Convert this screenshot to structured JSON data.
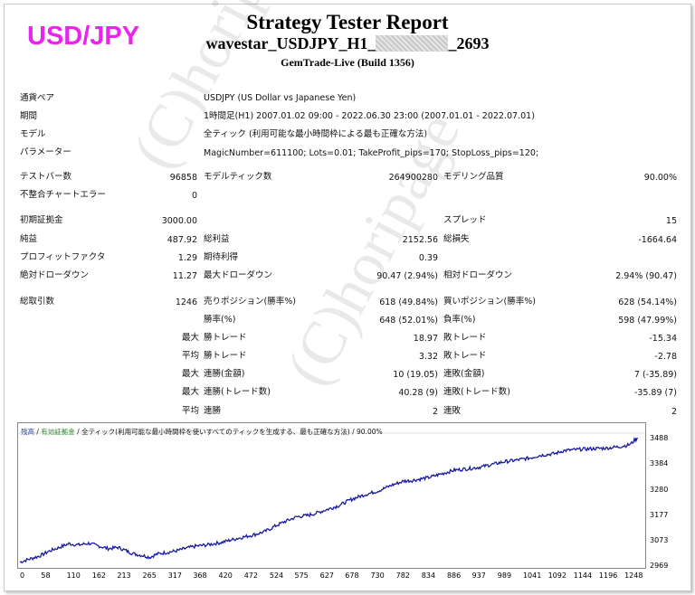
{
  "header": {
    "pair_label": "USD/JPY",
    "title": "Strategy Tester Report",
    "subtitle_prefix": "wavestar_USDJPY_H1_",
    "subtitle_suffix": "_2693",
    "server": "GemTrade-Live (Build 1356)"
  },
  "watermark": "(C)horipage",
  "info": [
    {
      "label": "通貨ペア",
      "value": "USDJPY (US Dollar vs Japanese Yen)"
    },
    {
      "label": "期間",
      "value": "1時間足(H1) 2007.01.02 09:00 - 2022.06.30 23:00 (2007.01.01 - 2022.07.01)"
    },
    {
      "label": "モデル",
      "value": "全ティック (利用可能な最小時間枠による最も正確な方法)"
    },
    {
      "label": "パラメーター",
      "value": "MagicNumber=611100; Lots=0.01; TakeProfit_pips=170; StopLoss_pips=120;"
    }
  ],
  "stats": {
    "bars_label": "テストバー数",
    "bars_value": "96858",
    "ticks_label": "モデルティック数",
    "ticks_value": "264900280",
    "quality_label": "モデリング品質",
    "quality_value": "90.00%",
    "errors_label": "不整合チャートエラー",
    "errors_value": "0",
    "deposit_label": "初期証拠金",
    "deposit_value": "3000.00",
    "spread_label": "スプレッド",
    "spread_value": "15",
    "net_label": "純益",
    "net_value": "487.92",
    "gross_profit_label": "総利益",
    "gross_profit_value": "2152.56",
    "gross_loss_label": "総損失",
    "gross_loss_value": "-1664.64",
    "pf_label": "プロフィットファクタ",
    "pf_value": "1.29",
    "expected_label": "期待利得",
    "expected_value": "0.39",
    "abs_dd_label": "絶対ドローダウン",
    "abs_dd_value": "11.27",
    "max_dd_label": "最大ドローダウン",
    "max_dd_value": "90.47 (2.94%)",
    "rel_dd_label": "相対ドローダウン",
    "rel_dd_value": "2.94% (90.47)",
    "total_trades_label": "総取引数",
    "total_trades_value": "1246",
    "short_label": "売りポジション(勝率%)",
    "short_value": "618 (49.84%)",
    "long_label": "買いポジション(勝率%)",
    "long_value": "628 (54.14%)",
    "win_rate_label": "勝率(%)",
    "win_rate_value": "648 (52.01%)",
    "loss_rate_label": "負率(%)",
    "loss_rate_value": "598 (47.99%)",
    "largest_prefix": "最大",
    "average_prefix": "平均",
    "largest_win_label": "勝トレード",
    "largest_win_value": "18.97",
    "largest_loss_label": "敗トレード",
    "largest_loss_value": "-15.34",
    "avg_win_label": "勝トレード",
    "avg_win_value": "3.32",
    "avg_loss_label": "敗トレード",
    "avg_loss_value": "-2.78",
    "max_consec_win_label": "連勝(金額)",
    "max_consec_win_value": "10 (19.05)",
    "max_consec_loss_label": "連敗(金額)",
    "max_consec_loss_value": "7 (-35.89)",
    "max_consec_profit_label": "連勝(トレード数)",
    "max_consec_profit_value": "40.28 (9)",
    "max_consec_lossamt_label": "連敗(トレード数)",
    "max_consec_lossamt_value": "-35.89 (7)",
    "avg_consec_win_label": "連勝",
    "avg_consec_win_value": "2",
    "avg_consec_loss_label": "連敗",
    "avg_consec_loss_value": "2"
  },
  "chart_legend": {
    "balance": "残高",
    "sep1": " / ",
    "equity": "有効証拠金",
    "sep2": " / ",
    "model": "全ティック(利用可能な最小時間枠を使いすべてのティックを生成する、最も正確な方法) / 90.00%"
  },
  "chart_data": {
    "type": "line",
    "series": [
      {
        "values": [
          [
            0,
            2985
          ],
          [
            20,
            2998
          ],
          [
            40,
            3010
          ],
          [
            60,
            3030
          ],
          [
            80,
            3045
          ],
          [
            100,
            3060
          ],
          [
            120,
            3055
          ],
          [
            140,
            3062
          ],
          [
            162,
            3050
          ],
          [
            180,
            3040
          ],
          [
            200,
            3045
          ],
          [
            213,
            3035
          ],
          [
            230,
            3020
          ],
          [
            250,
            3012
          ],
          [
            265,
            3005
          ],
          [
            280,
            3018
          ],
          [
            300,
            3025
          ],
          [
            317,
            3030
          ],
          [
            340,
            3042
          ],
          [
            358,
            3050
          ],
          [
            380,
            3055
          ],
          [
            410,
            3065
          ],
          [
            440,
            3080
          ],
          [
            462,
            3090
          ],
          [
            480,
            3098
          ],
          [
            500,
            3110
          ],
          [
            524,
            3135
          ],
          [
            540,
            3150
          ],
          [
            565,
            3170
          ],
          [
            585,
            3175
          ],
          [
            600,
            3182
          ],
          [
            627,
            3200
          ],
          [
            650,
            3215
          ],
          [
            675,
            3240
          ],
          [
            700,
            3258
          ],
          [
            730,
            3275
          ],
          [
            760,
            3300
          ],
          [
            782,
            3315
          ],
          [
            800,
            3318
          ],
          [
            834,
            3330
          ],
          [
            860,
            3345
          ],
          [
            886,
            3360
          ],
          [
            910,
            3365
          ],
          [
            937,
            3372
          ],
          [
            960,
            3382
          ],
          [
            989,
            3395
          ],
          [
            1010,
            3400
          ],
          [
            1041,
            3410
          ],
          [
            1060,
            3420
          ],
          [
            1092,
            3428
          ],
          [
            1110,
            3440
          ],
          [
            1144,
            3445
          ],
          [
            1170,
            3448
          ],
          [
            1196,
            3450
          ],
          [
            1220,
            3455
          ],
          [
            1240,
            3462
          ],
          [
            1248,
            3470
          ],
          [
            1255,
            3485
          ],
          [
            1260,
            3492
          ]
        ]
      }
    ],
    "x_ticks": [
      0,
      58,
      110,
      162,
      213,
      265,
      317,
      368,
      420,
      472,
      524,
      575,
      627,
      678,
      730,
      782,
      834,
      886,
      937,
      989,
      1041,
      1092,
      1144,
      1196,
      1248
    ],
    "y_ticks": [
      3488,
      3384,
      3280,
      3177,
      3073,
      2969
    ],
    "xlim": [
      0,
      1270
    ],
    "ylim": [
      2969,
      3500
    ],
    "line_color": "#1a1aa0"
  }
}
